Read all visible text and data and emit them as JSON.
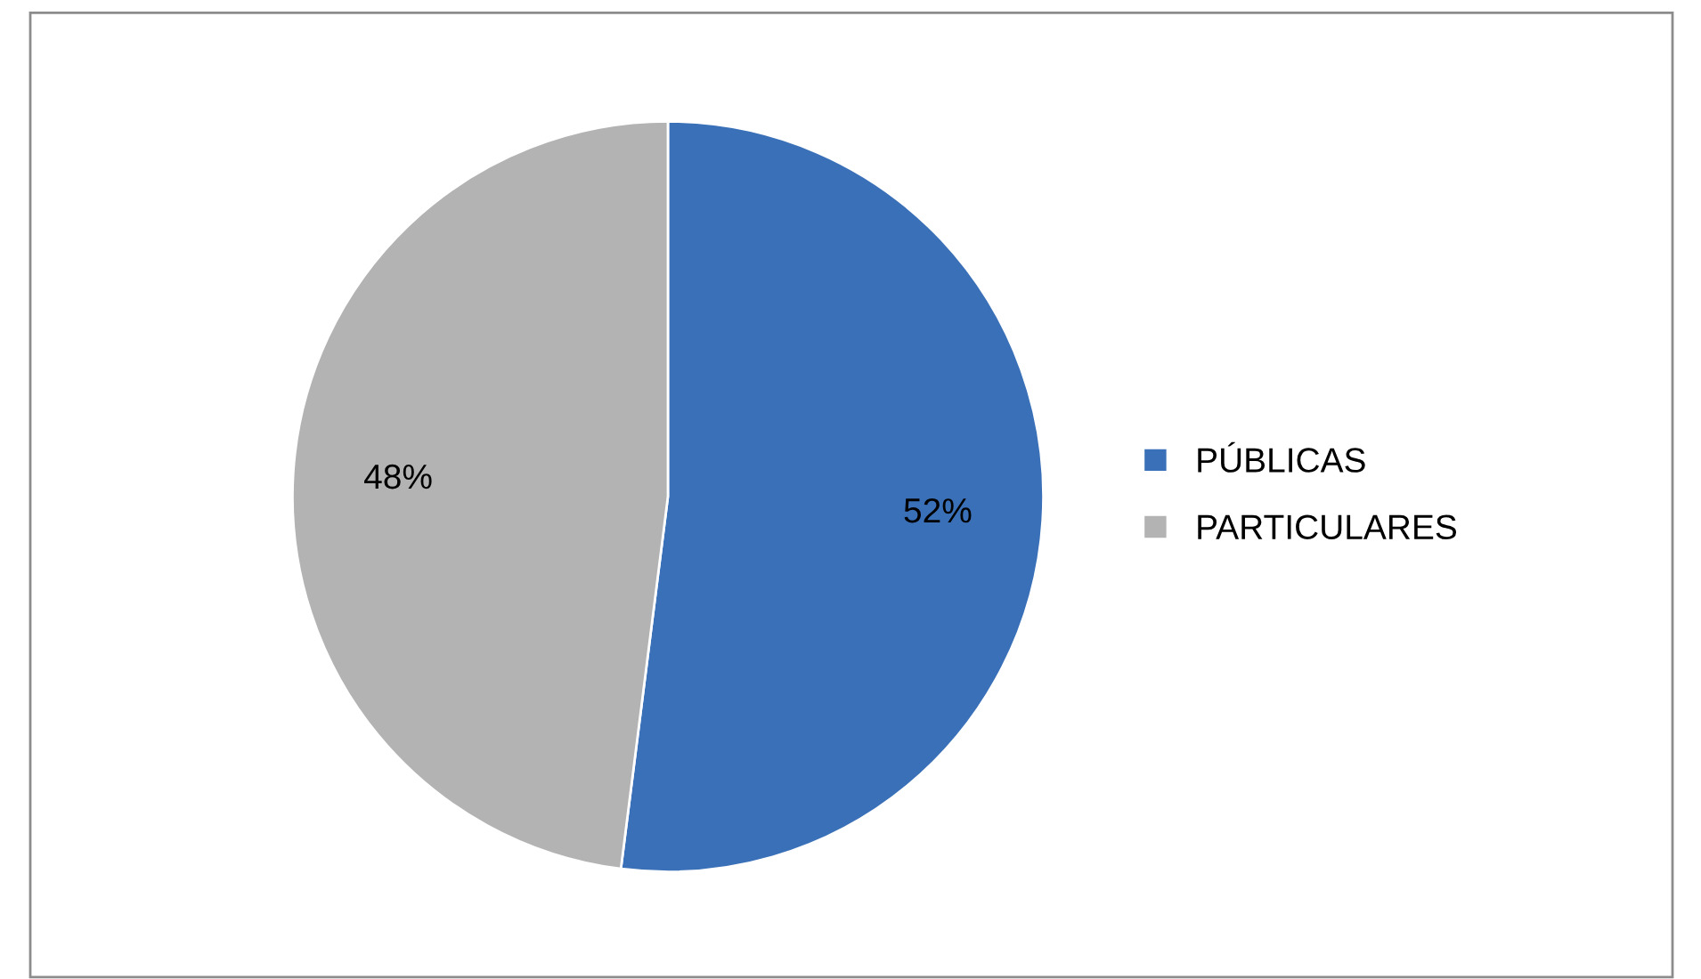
{
  "chart_data": {
    "type": "pie",
    "categories": [
      "PÚBLICAS",
      "PARTICULARES"
    ],
    "values": [
      52,
      48
    ],
    "colors": [
      "#3a70b8",
      "#b3b3b3"
    ],
    "value_labels": [
      "52%",
      "48%"
    ],
    "legend": "right"
  }
}
